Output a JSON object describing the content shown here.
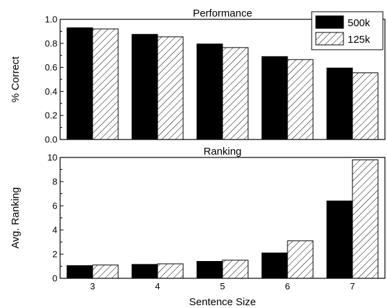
{
  "chart_data": [
    {
      "type": "bar",
      "title": "Performance",
      "xlabel": "",
      "ylabel": "% Correct",
      "ylim": [
        0,
        1.0
      ],
      "yticks": [
        "0.0",
        "0.2",
        "0.4",
        "0.6",
        "0.8",
        "1.0"
      ],
      "categories": [
        "3",
        "4",
        "5",
        "6",
        "7"
      ],
      "series": [
        {
          "name": "500k",
          "values": [
            0.93,
            0.875,
            0.795,
            0.69,
            0.595
          ]
        },
        {
          "name": "125k",
          "values": [
            0.92,
            0.855,
            0.765,
            0.665,
            0.555
          ]
        }
      ],
      "legend": "top-right"
    },
    {
      "type": "bar",
      "title": "Ranking",
      "xlabel": "Sentence Size",
      "ylabel": "Avg. Ranking",
      "ylim": [
        0,
        10
      ],
      "yticks": [
        "0",
        "2",
        "4",
        "6",
        "8",
        "10"
      ],
      "categories": [
        "3",
        "4",
        "5",
        "6",
        "7"
      ],
      "series": [
        {
          "name": "500k",
          "values": [
            1.05,
            1.15,
            1.4,
            2.1,
            6.4
          ]
        },
        {
          "name": "125k",
          "values": [
            1.1,
            1.2,
            1.5,
            3.1,
            9.8
          ]
        }
      ]
    }
  ],
  "colors": {
    "series_500k": "#000000",
    "series_125k_hatch": "#000000",
    "background": "#ffffff"
  }
}
